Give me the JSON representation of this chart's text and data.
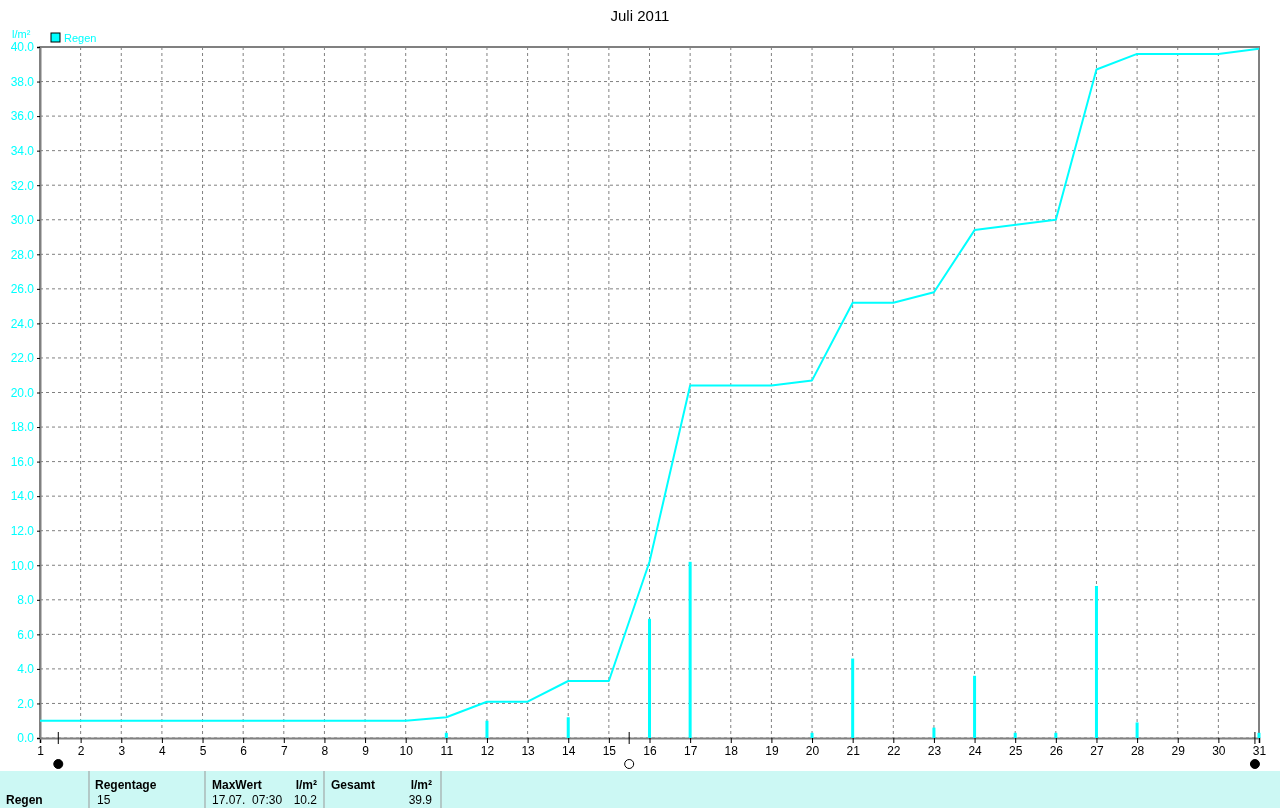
{
  "chart_data": {
    "type": "line",
    "title": "Juli 2011",
    "ylabel": "l/m²",
    "xlim": [
      1,
      31
    ],
    "xticks": [
      1,
      2,
      3,
      4,
      5,
      6,
      7,
      8,
      9,
      10,
      11,
      12,
      13,
      14,
      15,
      16,
      17,
      18,
      19,
      20,
      21,
      22,
      23,
      24,
      25,
      26,
      27,
      28,
      29,
      30,
      31
    ],
    "ylim": [
      0,
      40
    ],
    "yticks": [
      {
        "value": 0,
        "label": "0.0"
      },
      {
        "value": 2,
        "label": "2.0"
      },
      {
        "value": 4,
        "label": "4.0"
      },
      {
        "value": 6,
        "label": "6.0"
      },
      {
        "value": 8,
        "label": "8.0"
      },
      {
        "value": 10,
        "label": "10.0"
      },
      {
        "value": 12,
        "label": "12.0"
      },
      {
        "value": 14,
        "label": "14.0"
      },
      {
        "value": 16,
        "label": "16.0"
      },
      {
        "value": 18,
        "label": "18.0"
      },
      {
        "value": 20,
        "label": "20.0"
      },
      {
        "value": 22,
        "label": "22.0"
      },
      {
        "value": 24,
        "label": "24.0"
      },
      {
        "value": 26,
        "label": "26.0"
      },
      {
        "value": 28,
        "label": "28.0"
      },
      {
        "value": 30,
        "label": "30.0"
      },
      {
        "value": 32,
        "label": "32.0"
      },
      {
        "value": 34,
        "label": "34.0"
      },
      {
        "value": 36,
        "label": "36.0"
      },
      {
        "value": 38,
        "label": "38.0"
      },
      {
        "value": 40,
        "label": "40.0"
      }
    ],
    "grid": true,
    "legend": "top left",
    "line_style": "solid",
    "marker": "none",
    "series": [
      {
        "type": "bar",
        "color": "#00ffff",
        "x": [
          11,
          12,
          14,
          16,
          17,
          20,
          21,
          23,
          24,
          25,
          26,
          27,
          28,
          31
        ],
        "values": [
          0.3,
          1.0,
          1.2,
          6.9,
          10.2,
          0.3,
          4.6,
          0.6,
          3.6,
          0.3,
          0.3,
          8.8,
          0.9,
          0.3
        ]
      },
      {
        "name": "Regen",
        "color": "#00ffff",
        "x": [
          1,
          10,
          11,
          12,
          13,
          14,
          15,
          16,
          17,
          19,
          20,
          21,
          22,
          23,
          24,
          26,
          27,
          28,
          30,
          31
        ],
        "values": [
          1.0,
          1.0,
          1.2,
          2.1,
          2.1,
          3.3,
          3.3,
          10.2,
          20.4,
          20.4,
          20.7,
          25.2,
          25.2,
          25.8,
          29.4,
          30.0,
          38.7,
          39.6,
          39.6,
          39.9
        ]
      }
    ],
    "annotations": [
      "Regen",
      "Regentage",
      "15",
      "MaxWert",
      "l/m²",
      "17.07.  07:30",
      "10.2",
      "Gesamt",
      "l/m²",
      "39.9"
    ]
  }
}
